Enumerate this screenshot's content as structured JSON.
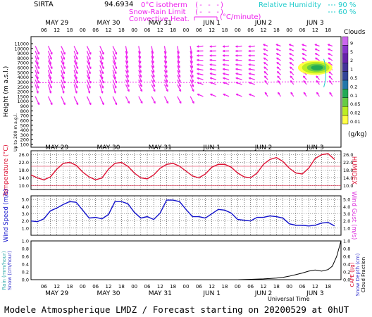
{
  "header": {
    "station": "SIRTA",
    "station_value": "94.6934",
    "legend_iso": "0°C isotherm",
    "legend_snow": "Snow-Rain Limit",
    "legend_conv": "Convective Heat.",
    "legend_unit": "(°C/minute)",
    "legend_rh": "Relative Humidity",
    "rh_90": "90 %",
    "rh_60": "60 %"
  },
  "colors": {
    "wind_barb": "#ee22ee",
    "temperature": "#dd1133",
    "humidex": "#dd1133",
    "wind_speed": "#1111cc",
    "rain": "#33aaaa",
    "snow": "#3333cc",
    "cape": "#000000",
    "clouds_scale": [
      "#ffff44",
      "#bbee22",
      "#66cc44",
      "#22aa55",
      "#2277aa",
      "#334499",
      "#443399",
      "#6622aa",
      "#8833cc",
      "#cc66ee"
    ]
  },
  "chart_data": [
    {
      "type": "heatmap",
      "panel": "clouds-wind",
      "ylabel": "Height (m a.s.l.)",
      "ylabel_sub": "Up to 200 m a.g.l.",
      "y_ticks": [
        "11000",
        "10000",
        "9000",
        "8000",
        "7000",
        "6000",
        "5000",
        "4000",
        "3000",
        "2500",
        "2000",
        "1500",
        "1000",
        "900",
        "800",
        "700",
        "600",
        "500",
        "400",
        "300",
        "200",
        "100"
      ],
      "top_day_labels": [
        "MAY 29",
        "MAY 30",
        "MAY 31",
        "JUN 1",
        "JUN 2",
        "JUN 3"
      ],
      "hour_ticks": [
        "06",
        "12",
        "18",
        "00",
        "06",
        "12",
        "18",
        "00",
        "06",
        "12",
        "18",
        "00",
        "06",
        "12",
        "18",
        "00",
        "06",
        "12",
        "18",
        "00",
        "06",
        "12",
        "18"
      ],
      "colorbar": {
        "title": "Clouds",
        "unit": "(g/kg)",
        "levels": [
          "0.01",
          "0.02",
          "0.05",
          "0.1",
          "0.2",
          "0.5",
          "1",
          "2",
          "5",
          "9"
        ]
      },
      "cloud_event": {
        "start": "JUN 3 00",
        "end": "JUN 3 12",
        "height_range_m": [
          4500,
          7500
        ],
        "peak_gkg": 0.2
      },
      "isotherm_0C_m": [
        2900,
        2950,
        2950,
        3000,
        3000,
        3000,
        2950,
        2950,
        2950,
        3000,
        3000,
        3050,
        3050,
        3100
      ],
      "wind": "north-east wind aloft on May 29-31, weakening and turning westerly by Jun 2-3"
    },
    {
      "type": "line",
      "panel": "temperature",
      "ylabel": "Temperature (°C)",
      "ylabel_right": "HUMIDEX",
      "y_ticks": [
        "26.0",
        "22.0",
        "18.0",
        "14.0",
        "10.0"
      ],
      "ylim": [
        8,
        28
      ],
      "x_hours": [
        0,
        3,
        6,
        9,
        12,
        15,
        18,
        21,
        24,
        27,
        30,
        33,
        36,
        39,
        42,
        45,
        48,
        51,
        54,
        57,
        60,
        63,
        66,
        69,
        72,
        75,
        78,
        81,
        84,
        87,
        90,
        93,
        96,
        99,
        102,
        105,
        108,
        111,
        114,
        117,
        120,
        123,
        126,
        129,
        132,
        135,
        138,
        141
      ],
      "series": [
        {
          "values": [
            15.5,
            14.0,
            13.0,
            14.5,
            18.5,
            21.5,
            22.0,
            20.5,
            17.0,
            14.5,
            13.0,
            14.0,
            18.5,
            21.5,
            22.0,
            20.0,
            16.5,
            14.0,
            13.5,
            15.5,
            19.0,
            21.0,
            21.5,
            20.0,
            17.5,
            15.0,
            14.0,
            16.0,
            19.5,
            21.0,
            21.0,
            19.5,
            16.5,
            14.5,
            14.0,
            16.5,
            21.0,
            23.5,
            24.5,
            22.5,
            19.0,
            16.5,
            16.0,
            19.0,
            24.0,
            26.0,
            26.5,
            23.5
          ]
        }
      ]
    },
    {
      "type": "line",
      "panel": "wind-speed",
      "ylabel": "Wind Speed (m/s)",
      "ylabel_right": "Wind Gust (m/s)",
      "y_ticks": [
        "5.0",
        "4.0",
        "3.0",
        "2.0",
        "1.0"
      ],
      "ylim": [
        0,
        5.5
      ],
      "x_hours": [
        0,
        3,
        6,
        9,
        12,
        15,
        18,
        21,
        24,
        27,
        30,
        33,
        36,
        39,
        42,
        45,
        48,
        51,
        54,
        57,
        60,
        63,
        66,
        69,
        72,
        75,
        78,
        81,
        84,
        87,
        90,
        93,
        96,
        99,
        102,
        105,
        108,
        111,
        114,
        117,
        120,
        123,
        126,
        129,
        132,
        135,
        138,
        141
      ],
      "series": [
        {
          "values": [
            2.0,
            1.9,
            2.3,
            3.4,
            3.8,
            4.3,
            4.7,
            4.6,
            3.5,
            2.4,
            2.5,
            2.3,
            2.9,
            4.7,
            4.7,
            4.4,
            3.2,
            2.4,
            2.6,
            2.2,
            3.1,
            4.9,
            4.9,
            4.7,
            3.6,
            2.6,
            2.6,
            2.4,
            3.0,
            3.6,
            3.5,
            3.1,
            2.2,
            2.1,
            2.0,
            2.5,
            2.5,
            2.7,
            2.6,
            2.4,
            1.6,
            1.4,
            1.4,
            1.3,
            1.4,
            1.7,
            1.8,
            1.3
          ]
        }
      ]
    },
    {
      "type": "line",
      "panel": "precip-cape",
      "ylabel_left": "Rain (mm/hour)",
      "ylabel_left2": "Snow (cm/hour)",
      "ylabel_right": "CAPE (J/g)",
      "ylabel_right2": "Snow Depth (cm)",
      "ylabel_right3": "Cloud Fraction",
      "y_ticks": [
        "1.0",
        "0.8",
        "0.6",
        "0.4",
        "0.2",
        "0.0"
      ],
      "ylim": [
        0,
        1.0
      ],
      "bottom_day_labels": [
        "MAY 29",
        "MAY 30",
        "MAY 31",
        "JUN 1",
        "JUN 2",
        "JUN 3"
      ],
      "xlabel": "Universal Time",
      "x_hours": [
        0,
        6,
        12,
        18,
        24,
        30,
        36,
        42,
        48,
        54,
        60,
        66,
        72,
        78,
        84,
        90,
        96,
        102,
        108,
        114,
        117,
        120,
        123,
        126,
        129,
        132,
        135,
        138,
        140,
        142,
        144
      ],
      "series": [
        {
          "values": [
            0,
            0,
            0,
            0,
            0,
            0,
            0,
            0,
            0,
            0,
            0,
            0,
            0,
            0,
            0,
            0,
            0,
            0.01,
            0.02,
            0.04,
            0.06,
            0.09,
            0.13,
            0.17,
            0.22,
            0.25,
            0.22,
            0.26,
            0.35,
            0.6,
            1.0
          ]
        }
      ]
    }
  ],
  "footer": "Modele Atmospherique LMDZ / Forecast starting on 20200529 at 0hUT"
}
